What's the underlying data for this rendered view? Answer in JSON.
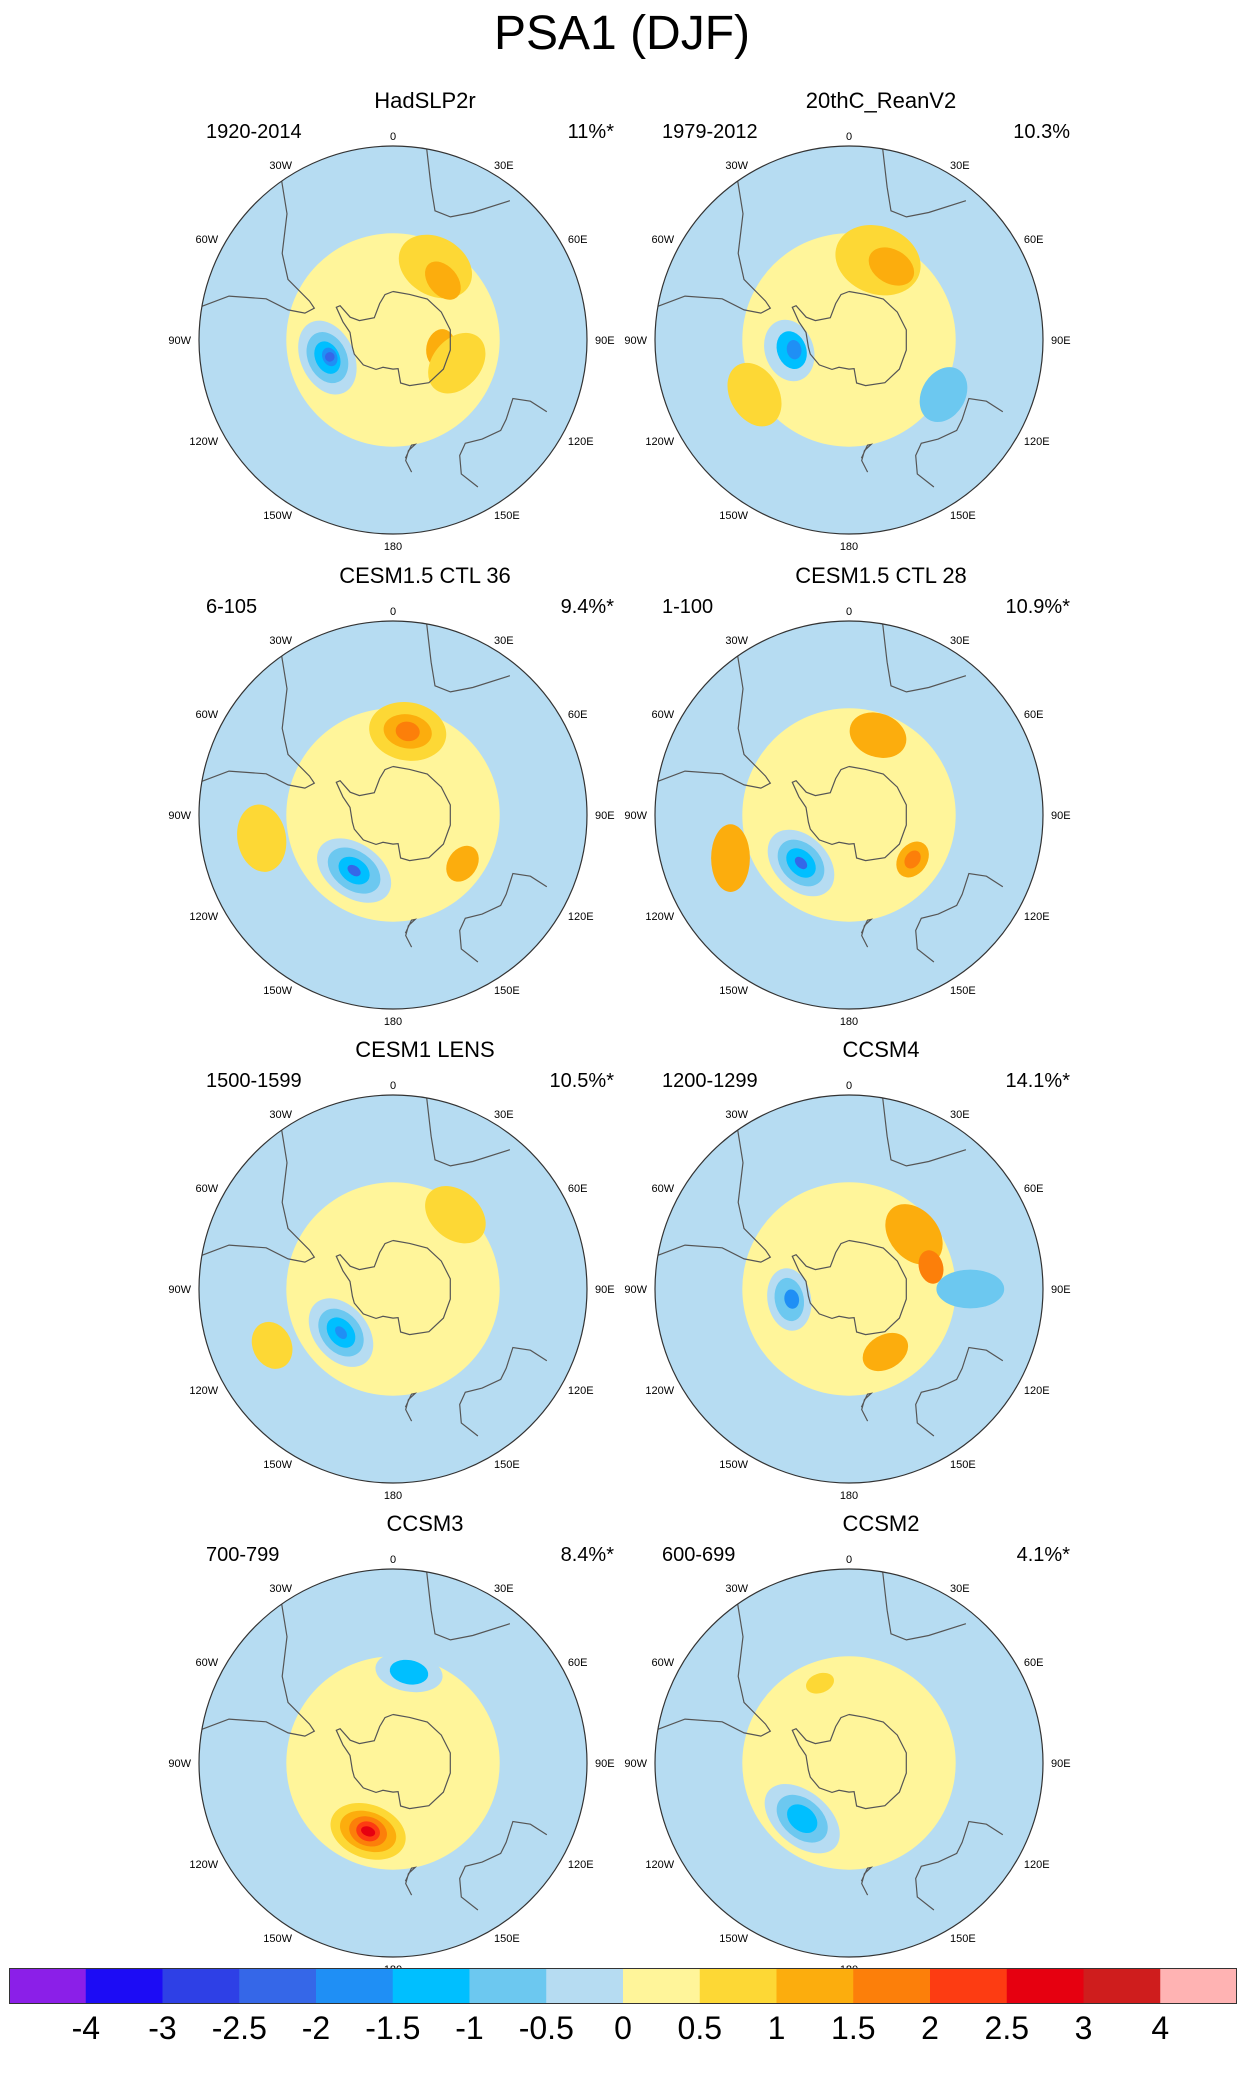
{
  "figure": {
    "title": "PSA1 (DJF)"
  },
  "colors": {
    "levels": [
      "#8b1fe8",
      "#1c0cf5",
      "#2e40e6",
      "#3567e8",
      "#1f8ff5",
      "#00bfff",
      "#6cc8f0",
      "#b6dcf2",
      "#fff59a",
      "#fdd835",
      "#fcad0d",
      "#fc7f0a",
      "#fd3c12",
      "#e60010",
      "#cf1d1d",
      "#ffb3b3"
    ],
    "coast": "#555555",
    "rim": "#333333"
  },
  "grid_labels": {
    "top": "0",
    "bottom": "180",
    "left": [
      "30W",
      "60W",
      "90W",
      "120W",
      "150W"
    ],
    "right": [
      "30E",
      "60E",
      "90E",
      "120E",
      "150E"
    ]
  },
  "panels": [
    {
      "title": "HadSLP2r",
      "years": "1920-2014",
      "variance": "11%*",
      "anomalies": [
        {
          "level": 9,
          "lon": 30,
          "lat": -55,
          "a": 16,
          "b": 12,
          "ang": 0
        },
        {
          "level": 10,
          "lon": 40,
          "lat": -58,
          "a": 9,
          "b": 6,
          "ang": 10
        },
        {
          "level": 10,
          "lon": 100,
          "lat": -70,
          "a": 8,
          "b": 6,
          "ang": 0
        },
        {
          "level": 9,
          "lon": 110,
          "lat": -62,
          "a": 14,
          "b": 10,
          "ang": 20
        },
        {
          "level": 7,
          "lon": -105,
          "lat": -62,
          "a": 16,
          "b": 11,
          "ang": -10
        },
        {
          "level": 6,
          "lon": -105,
          "lat": -62,
          "a": 11,
          "b": 8,
          "ang": -10
        },
        {
          "level": 5,
          "lon": -105,
          "lat": -62,
          "a": 7,
          "b": 5,
          "ang": -10
        },
        {
          "level": 4,
          "lon": -105,
          "lat": -63,
          "a": 4,
          "b": 3,
          "ang": -10
        },
        {
          "level": 3,
          "lon": -105,
          "lat": -63,
          "a": 2,
          "b": 2,
          "ang": 0
        }
      ]
    },
    {
      "title": "20thC_ReanV2",
      "years": "1979-2012",
      "variance": "10.3%",
      "anomalies": [
        {
          "level": 9,
          "lon": 20,
          "lat": -55,
          "a": 18,
          "b": 14,
          "ang": 0
        },
        {
          "level": 10,
          "lon": 30,
          "lat": -55,
          "a": 10,
          "b": 7,
          "ang": 0
        },
        {
          "level": 9,
          "lon": -120,
          "lat": -45,
          "a": 14,
          "b": 10,
          "ang": 0
        },
        {
          "level": 6,
          "lon": 120,
          "lat": -45,
          "a": 12,
          "b": 9,
          "ang": 0
        },
        {
          "level": 7,
          "lon": -100,
          "lat": -65,
          "a": 13,
          "b": 10,
          "ang": -10
        },
        {
          "level": 5,
          "lon": -100,
          "lat": -66,
          "a": 8,
          "b": 6,
          "ang": -10
        },
        {
          "level": 4,
          "lon": -100,
          "lat": -67,
          "a": 4,
          "b": 3,
          "ang": 0
        }
      ]
    },
    {
      "title": "CESM1.5 CTL 36",
      "years": "6-105",
      "variance": "9.4%*",
      "anomalies": [
        {
          "level": 9,
          "lon": 10,
          "lat": -55,
          "a": 16,
          "b": 12,
          "ang": 0
        },
        {
          "level": 10,
          "lon": 10,
          "lat": -55,
          "a": 10,
          "b": 7,
          "ang": 0
        },
        {
          "level": 11,
          "lon": 10,
          "lat": -55,
          "a": 5,
          "b": 4,
          "ang": 0
        },
        {
          "level": 9,
          "lon": -100,
          "lat": -35,
          "a": 14,
          "b": 10,
          "ang": 0
        },
        {
          "level": 10,
          "lon": 125,
          "lat": -55,
          "a": 8,
          "b": 6,
          "ang": 0
        },
        {
          "level": 7,
          "lon": -145,
          "lat": -62,
          "a": 17,
          "b": 11,
          "ang": 0
        },
        {
          "level": 6,
          "lon": -145,
          "lat": -62,
          "a": 12,
          "b": 8,
          "ang": 0
        },
        {
          "level": 5,
          "lon": -145,
          "lat": -62,
          "a": 7,
          "b": 5,
          "ang": 0
        },
        {
          "level": 3,
          "lon": -145,
          "lat": -62,
          "a": 3,
          "b": 2,
          "ang": 0
        }
      ]
    },
    {
      "title": "CESM1.5 CTL 28",
      "years": "1-100",
      "variance": "10.9%*",
      "anomalies": [
        {
          "level": 10,
          "lon": 20,
          "lat": -55,
          "a": 12,
          "b": 9,
          "ang": 0
        },
        {
          "level": 10,
          "lon": -110,
          "lat": -38,
          "a": 14,
          "b": 8,
          "ang": 20
        },
        {
          "level": 10,
          "lon": 125,
          "lat": -58,
          "a": 8,
          "b": 6,
          "ang": 0
        },
        {
          "level": 11,
          "lon": 125,
          "lat": -58,
          "a": 4,
          "b": 3,
          "ang": 0
        },
        {
          "level": 7,
          "lon": -135,
          "lat": -62,
          "a": 16,
          "b": 11,
          "ang": 0
        },
        {
          "level": 6,
          "lon": -135,
          "lat": -62,
          "a": 11,
          "b": 8,
          "ang": 0
        },
        {
          "level": 5,
          "lon": -135,
          "lat": -62,
          "a": 7,
          "b": 5,
          "ang": 0
        },
        {
          "level": 3,
          "lon": -135,
          "lat": -62,
          "a": 3,
          "b": 2,
          "ang": 0
        }
      ]
    },
    {
      "title": "CESM1 LENS",
      "years": "1500-1599",
      "variance": "10.5%*",
      "anomalies": [
        {
          "level": 9,
          "lon": 40,
          "lat": -50,
          "a": 14,
          "b": 10,
          "ang": 0
        },
        {
          "level": 9,
          "lon": -115,
          "lat": -35,
          "a": 10,
          "b": 8,
          "ang": 0
        },
        {
          "level": 7,
          "lon": -130,
          "lat": -62,
          "a": 16,
          "b": 11,
          "ang": 0
        },
        {
          "level": 6,
          "lon": -130,
          "lat": -62,
          "a": 11,
          "b": 8,
          "ang": 0
        },
        {
          "level": 5,
          "lon": -130,
          "lat": -62,
          "a": 7,
          "b": 5,
          "ang": 0
        },
        {
          "level": 4,
          "lon": -130,
          "lat": -62,
          "a": 3,
          "b": 2,
          "ang": 0
        }
      ]
    },
    {
      "title": "CCSM4",
      "years": "1200-1299",
      "variance": "14.1%*",
      "anomalies": [
        {
          "level": 10,
          "lon": 50,
          "lat": -55,
          "a": 14,
          "b": 10,
          "ang": 0
        },
        {
          "level": 11,
          "lon": 75,
          "lat": -55,
          "a": 7,
          "b": 5,
          "ang": 0
        },
        {
          "level": 10,
          "lon": 150,
          "lat": -60,
          "a": 10,
          "b": 7,
          "ang": 0
        },
        {
          "level": 6,
          "lon": 90,
          "lat": -40,
          "a": 8,
          "b": 14,
          "ang": 0
        },
        {
          "level": 7,
          "lon": -100,
          "lat": -65,
          "a": 13,
          "b": 9,
          "ang": 0
        },
        {
          "level": 6,
          "lon": -100,
          "lat": -65,
          "a": 9,
          "b": 6,
          "ang": 0
        },
        {
          "level": 4,
          "lon": -100,
          "lat": -66,
          "a": 4,
          "b": 3,
          "ang": 0
        }
      ]
    },
    {
      "title": "CCSM3",
      "years": "700-799",
      "variance": "8.4%*",
      "anomalies": [
        {
          "level": 7,
          "lon": 10,
          "lat": -52,
          "a": 14,
          "b": 8,
          "ang": 0
        },
        {
          "level": 5,
          "lon": 10,
          "lat": -52,
          "a": 8,
          "b": 5,
          "ang": 0
        },
        {
          "level": 9,
          "lon": -160,
          "lat": -60,
          "a": 16,
          "b": 11,
          "ang": 0
        },
        {
          "level": 10,
          "lon": -160,
          "lat": -60,
          "a": 12,
          "b": 8,
          "ang": 0
        },
        {
          "level": 11,
          "lon": -160,
          "lat": -60,
          "a": 8,
          "b": 6,
          "ang": 0
        },
        {
          "level": 12,
          "lon": -160,
          "lat": -60,
          "a": 5,
          "b": 4,
          "ang": 0
        },
        {
          "level": 13,
          "lon": -160,
          "lat": -60,
          "a": 3,
          "b": 2,
          "ang": 0
        }
      ]
    },
    {
      "title": "CCSM2",
      "years": "600-699",
      "variance": "4.1%*",
      "anomalies": [
        {
          "level": 7,
          "lon": -140,
          "lat": -60,
          "a": 18,
          "b": 11,
          "ang": 0
        },
        {
          "level": 6,
          "lon": -140,
          "lat": -60,
          "a": 12,
          "b": 8,
          "ang": 0
        },
        {
          "level": 5,
          "lon": -140,
          "lat": -60,
          "a": 7,
          "b": 5,
          "ang": 0
        },
        {
          "level": 9,
          "lon": -20,
          "lat": -55,
          "a": 6,
          "b": 4,
          "ang": 0
        }
      ]
    }
  ],
  "colorbar": {
    "labels": [
      "-4",
      "-3",
      "-2.5",
      "-2",
      "-1.5",
      "-1",
      "-0.5",
      "0",
      "0.5",
      "1",
      "1.5",
      "2",
      "2.5",
      "3",
      "4"
    ]
  }
}
